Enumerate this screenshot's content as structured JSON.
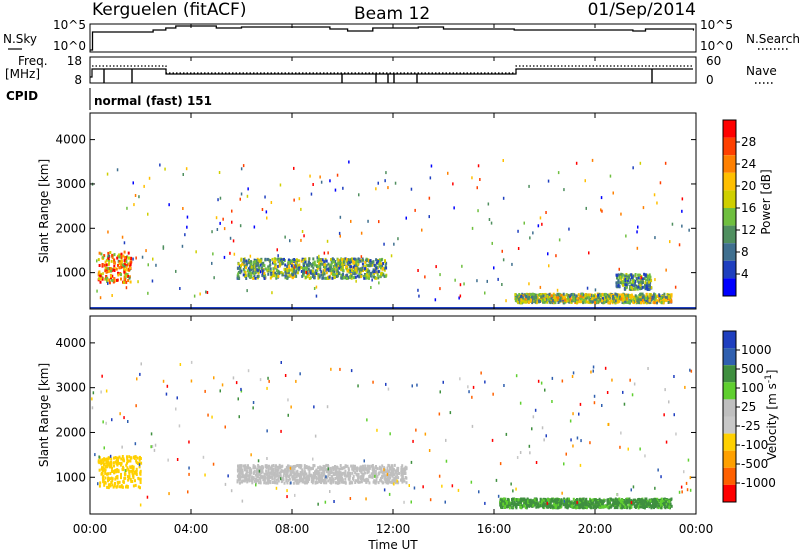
{
  "header": {
    "station": "Kerguelen (fitACF)",
    "beam": "Beam 12",
    "date": "01/Sep/2014"
  },
  "noise_panel": {
    "left_label": "N.Sky",
    "right_label": "N.Search",
    "left_ticks": [
      "10^5",
      "10^0"
    ],
    "right_ticks": [
      "10^5",
      "10^0"
    ]
  },
  "freq_panel": {
    "left_label_1": "Freq.",
    "left_label_2": "[MHz]",
    "left_ticks": [
      "18",
      "8"
    ],
    "right_label": "Nave",
    "right_ticks": [
      "60",
      "0"
    ]
  },
  "cpid": {
    "label": "CPID",
    "value": "normal (fast) 151"
  },
  "x_axis": {
    "label": "Time UT",
    "ticks": [
      "00:00",
      "04:00",
      "08:00",
      "12:00",
      "16:00",
      "20:00",
      "00:00"
    ]
  },
  "colors": {
    "power_scale": [
      "#0000ff",
      "#1f3fbf",
      "#3f6f8f",
      "#4f8f5f",
      "#6fbf3f",
      "#cfcf00",
      "#ffbf00",
      "#ff8000",
      "#ff4000",
      "#ff0000"
    ],
    "velocity_scale": [
      "#1f3fbf",
      "#2f5faf",
      "#3f8f3f",
      "#5fcf2f",
      "#bfbfbf",
      "#c8c8c8",
      "#ffd000",
      "#ffa000",
      "#ff6000",
      "#ff0000"
    ]
  },
  "chart_data": [
    {
      "type": "heatmap",
      "title": "",
      "ylabel": "Slant Range [km]",
      "xlabel": "",
      "ylim": [
        180,
        4600
      ],
      "xlim": [
        0,
        24
      ],
      "yticks": [
        "1000",
        "2000",
        "3000",
        "4000"
      ],
      "colorbar": {
        "label": "Power [dB]",
        "ticks": [
          "4",
          "8",
          "12",
          "16",
          "20",
          "24",
          "28"
        ],
        "range": [
          0,
          30
        ]
      },
      "features": [
        {
          "name": "early-strong-echo",
          "t_range": [
            0.3,
            1.6
          ],
          "r_range": [
            800,
            1500
          ],
          "value": 22
        },
        {
          "name": "main-band",
          "t_range": [
            5.8,
            11.7
          ],
          "r_range": [
            900,
            1350
          ],
          "value": 12
        },
        {
          "name": "tail-echo",
          "t_range": [
            16.8,
            23.0
          ],
          "r_range": [
            350,
            550
          ],
          "value": 14
        },
        {
          "name": "late-cluster",
          "t_range": [
            20.8,
            22.2
          ],
          "r_range": [
            650,
            1000
          ],
          "value": 10
        }
      ]
    },
    {
      "type": "heatmap",
      "title": "",
      "ylabel": "Slant Range [km]",
      "xlabel": "Time UT",
      "ylim": [
        180,
        4600
      ],
      "xlim": [
        0,
        24
      ],
      "yticks": [
        "1000",
        "2000",
        "3000",
        "4000"
      ],
      "colorbar": {
        "label": "Velocity [m s^-1]",
        "ticks": [
          "1000",
          "500",
          "100",
          "25",
          "-25",
          "-100",
          "-500",
          "-1000"
        ],
        "range": [
          -1000,
          1000
        ]
      },
      "features": [
        {
          "name": "early-orange-echo",
          "t_range": [
            0.3,
            2.0
          ],
          "r_range": [
            800,
            1500
          ],
          "value": -200
        },
        {
          "name": "grey-ground-band",
          "t_range": [
            5.8,
            12.5
          ],
          "r_range": [
            900,
            1300
          ],
          "value": 0
        },
        {
          "name": "green-tail-echo",
          "t_range": [
            16.2,
            23.0
          ],
          "r_range": [
            350,
            550
          ],
          "value": 120
        }
      ]
    }
  ]
}
